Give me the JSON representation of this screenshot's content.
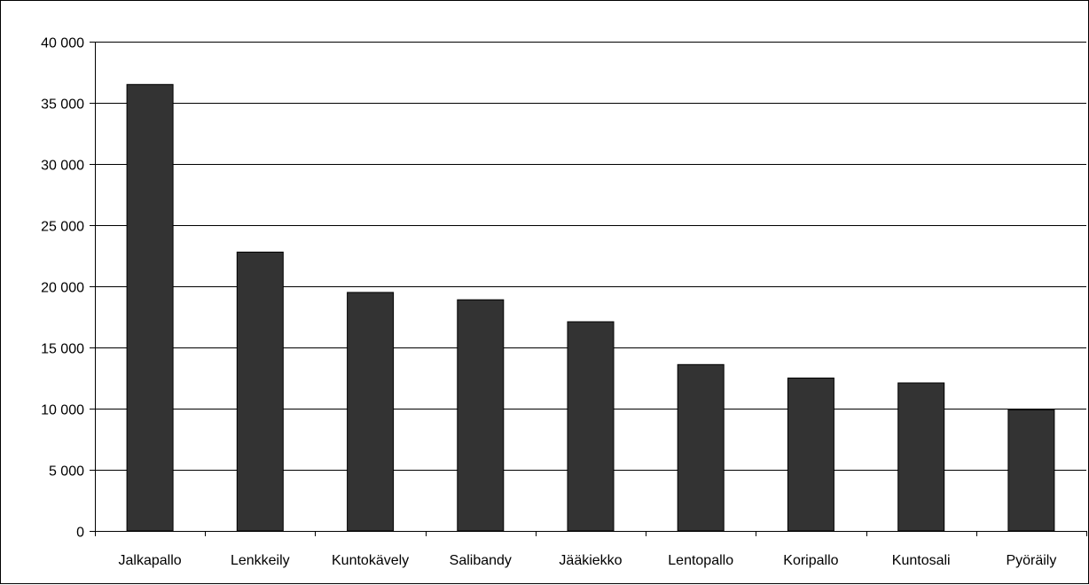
{
  "chart_data": {
    "type": "bar",
    "categories": [
      "Jalkapallo",
      "Lenkkeily",
      "Kuntokävely",
      "Salibandy",
      "Jääkiekko",
      "Lentopallo",
      "Koripallo",
      "Kuntosali",
      "Pyöräily"
    ],
    "values": [
      36500,
      22800,
      19500,
      18900,
      17100,
      13600,
      12500,
      12100,
      9900
    ],
    "title": "",
    "xlabel": "",
    "ylabel": "",
    "ylim": [
      0,
      40000
    ],
    "yticks": [
      "0",
      "5 000",
      "10 000",
      "15 000",
      "20 000",
      "25 000",
      "30 000",
      "35 000",
      "40 000"
    ],
    "ytick_values": [
      0,
      5000,
      10000,
      15000,
      20000,
      25000,
      30000,
      35000,
      40000
    ],
    "grid": true,
    "legend": "none",
    "bar_color": "#333333",
    "gridline_color": "#000000"
  }
}
